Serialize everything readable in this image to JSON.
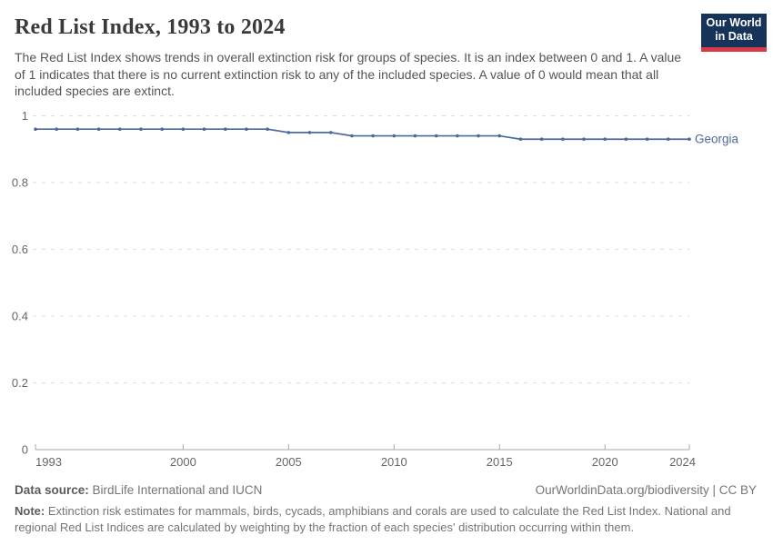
{
  "header": {
    "title": "Red List Index, 1993 to 2024",
    "subtitle": "The Red List Index shows trends in overall extinction risk for groups of species. It is an index between 0 and 1. A value of 1 indicates that there is no current extinction risk to any of the included species. A value of 0 would mean that all included species are extinct."
  },
  "logo": {
    "line1": "Our World",
    "line2": "in Data",
    "bg_color": "#16335a",
    "stripe_color": "#d93a46"
  },
  "chart_data": {
    "type": "line",
    "title": "Red List Index, 1993 to 2024",
    "xlabel": "",
    "ylabel": "",
    "xlim": [
      1993,
      2024
    ],
    "ylim": [
      0,
      1
    ],
    "xticks": [
      1993,
      2000,
      2005,
      2010,
      2015,
      2020,
      2024
    ],
    "yticks": [
      0,
      0.2,
      0.4,
      0.6,
      0.8,
      1
    ],
    "ytick_labels": [
      "0",
      "0.2",
      "0.4",
      "0.6",
      "0.8",
      "1"
    ],
    "grid": "horizontal-dashed",
    "legend_position": "end-of-line",
    "grid_color": "#dcdcdc",
    "axis_color": "#a9a9a9",
    "tick_text_color": "#676767",
    "x": [
      1993,
      1994,
      1995,
      1996,
      1997,
      1998,
      1999,
      2000,
      2001,
      2002,
      2003,
      2004,
      2005,
      2006,
      2007,
      2008,
      2009,
      2010,
      2011,
      2012,
      2013,
      2014,
      2015,
      2016,
      2017,
      2018,
      2019,
      2020,
      2021,
      2022,
      2023,
      2024
    ],
    "series": [
      {
        "name": "Georgia",
        "color": "#4C6A9C",
        "values": [
          0.96,
          0.96,
          0.96,
          0.96,
          0.96,
          0.96,
          0.96,
          0.96,
          0.96,
          0.96,
          0.96,
          0.96,
          0.95,
          0.95,
          0.95,
          0.94,
          0.94,
          0.94,
          0.94,
          0.94,
          0.94,
          0.94,
          0.94,
          0.93,
          0.93,
          0.93,
          0.93,
          0.93,
          0.93,
          0.93,
          0.93,
          0.93
        ]
      }
    ]
  },
  "footer": {
    "source_label": "Data source:",
    "source_text": " BirdLife International and IUCN",
    "rights": "OurWorldinData.org/biodiversity | CC BY",
    "note_label": "Note:",
    "note_text": " Extinction risk estimates for mammals, birds, cycads, amphibians and corals are used to calculate the Red List Index. National and regional Red List Indices are calculated by weighting by the fraction of each species' distribution occurring within them."
  }
}
